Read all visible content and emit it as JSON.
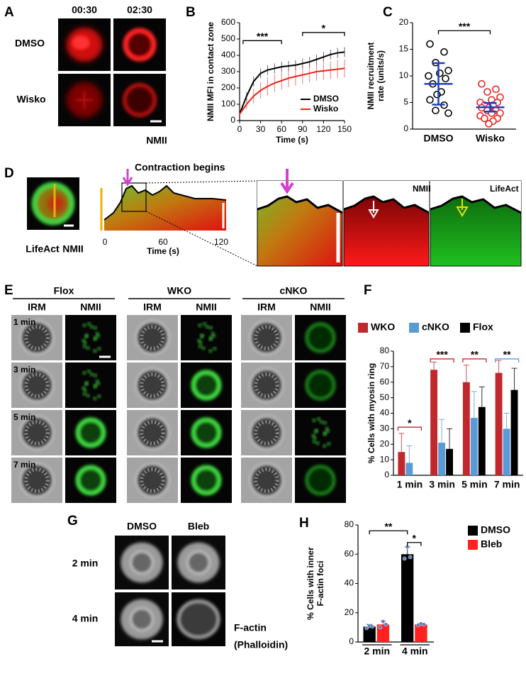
{
  "panel_labels": [
    "A",
    "B",
    "C",
    "D",
    "E",
    "F",
    "G",
    "H"
  ],
  "panel_a": {
    "columns": [
      "00:30",
      "02:30"
    ],
    "rows": [
      "DMSO",
      "Wisko"
    ],
    "channel": "NMII"
  },
  "panel_d": {
    "annotation": "Contraction begins",
    "channels": [
      "LifeAct",
      "NMII"
    ],
    "kymograph_xlabel": "Time (s)",
    "kymograph_xticks": [
      0,
      60,
      120
    ],
    "zoom_labels": [
      "NMII",
      "LifeAct"
    ]
  },
  "panel_e": {
    "groups": [
      "Flox",
      "WKO",
      "cNKO"
    ],
    "channels": [
      "IRM",
      "NMII"
    ],
    "times": [
      "1 min",
      "3 min",
      "5 min",
      "7 min"
    ]
  },
  "panel_g": {
    "columns": [
      "DMSO",
      "Bleb"
    ],
    "rows": [
      "2 min",
      "4 min"
    ],
    "stain": [
      "F-actin",
      "(Phalloidin)"
    ]
  },
  "chart_data": [
    {
      "type": "line",
      "ylabel": [
        "NMII MFI in contact zone"
      ],
      "xlabel": "Time (s)",
      "x": [
        0,
        10,
        20,
        30,
        40,
        50,
        60,
        70,
        80,
        90,
        100,
        110,
        120,
        130,
        140,
        150
      ],
      "xlim": [
        0,
        150
      ],
      "xticks": [
        0,
        30,
        60,
        90,
        120,
        150
      ],
      "ylim": [
        0,
        600
      ],
      "yticks": [
        0,
        100,
        200,
        300,
        400,
        500,
        600
      ],
      "series": [
        {
          "name": "DMSO",
          "color": "#000000",
          "values": [
            40,
            150,
            240,
            290,
            310,
            320,
            330,
            335,
            340,
            350,
            360,
            375,
            390,
            405,
            415,
            420
          ],
          "errors": [
            5,
            25,
            30,
            30,
            30,
            30,
            30,
            30,
            30,
            30,
            30,
            30,
            30,
            30,
            30,
            30
          ]
        },
        {
          "name": "Wisko",
          "color": "#e8231d",
          "values": [
            40,
            100,
            150,
            185,
            210,
            230,
            245,
            260,
            270,
            280,
            290,
            300,
            305,
            310,
            315,
            320
          ],
          "errors": [
            5,
            30,
            45,
            50,
            55,
            55,
            55,
            55,
            55,
            55,
            55,
            55,
            55,
            55,
            55,
            55
          ]
        }
      ],
      "significance": [
        {
          "label": "***",
          "x": [
            5,
            60
          ],
          "y": 490
        },
        {
          "label": "*",
          "x": [
            90,
            150
          ],
          "y": 540
        }
      ],
      "legend": "lower right"
    },
    {
      "type": "dot",
      "ylabel": [
        "NMII recruitment",
        "rate (units/s)"
      ],
      "ylim": [
        0,
        20
      ],
      "yticks": [
        0,
        5,
        10,
        15,
        20
      ],
      "summary_color": "#1f3fbf",
      "series": [
        {
          "name": "DMSO",
          "color": "#000000",
          "values": [
            16,
            14.5,
            12.5,
            11,
            10.5,
            10,
            9.5,
            8.5,
            7,
            6.5,
            5.5,
            4.5,
            3.5,
            3
          ],
          "mean": 8.5,
          "error": 3.9
        },
        {
          "name": "Wisko",
          "color": "#e8231d",
          "values": [
            8.5,
            7.5,
            7,
            6,
            5.5,
            5,
            5,
            4.5,
            4.5,
            4,
            4,
            3.5,
            3.5,
            3,
            3,
            2.5,
            2,
            2,
            1.5,
            1
          ],
          "mean": 4.1,
          "error": 0.8
        }
      ],
      "significance": [
        {
          "label": "***",
          "y": 18.5
        }
      ]
    },
    {
      "type": "bar",
      "ylabel": [
        "% Cells with myosin ring"
      ],
      "categories": [
        "1 min",
        "3 min",
        "5 min",
        "7 min"
      ],
      "ylim": [
        0,
        80
      ],
      "yticks": [
        0,
        10,
        20,
        30,
        40,
        50,
        60,
        70,
        80
      ],
      "series": [
        {
          "name": "WKO",
          "color": "#c0282d",
          "values": [
            15,
            68,
            60,
            66
          ],
          "errors": [
            12,
            5,
            11,
            8
          ]
        },
        {
          "name": "cNKO",
          "color": "#5b9bd5",
          "values": [
            8,
            21,
            37,
            30
          ],
          "errors": [
            11,
            15,
            17,
            10
          ]
        },
        {
          "name": "Flox",
          "color": "#000000",
          "values": [
            null,
            17,
            44,
            55
          ],
          "errors": [
            null,
            13,
            13,
            14
          ]
        }
      ],
      "significance": [
        {
          "label": "*",
          "color": "#c0282d",
          "y": 31
        },
        {
          "label": "***",
          "color": "#c0282d",
          "y": 75
        },
        {
          "label": "**",
          "color": "#c0282d",
          "y": 75
        },
        {
          "label": "**",
          "color": "#5b9bd5",
          "y": 75
        }
      ],
      "legend": "top"
    },
    {
      "type": "bar",
      "ylabel": [
        "% Cells with inner",
        "F-actin foci"
      ],
      "categories": [
        "2 min",
        "4 min"
      ],
      "category_brackets": true,
      "ylim": [
        0,
        80
      ],
      "yticks": [
        0,
        20,
        40,
        60,
        80
      ],
      "point_color": "#5a7fb8",
      "series": [
        {
          "name": "DMSO",
          "color": "#000000",
          "values": [
            10.5,
            60
          ],
          "errors": [
            1.5,
            5
          ],
          "points": [
            [
              9.5,
              11,
              10.5
            ],
            [
              57,
              65,
              58
            ]
          ]
        },
        {
          "name": "Bleb",
          "color": "#ff2020",
          "values": [
            12,
            12
          ],
          "errors": [
            2.5,
            1
          ],
          "points": [
            [
              10,
              14,
              12
            ],
            [
              11.5,
              12.5,
              12
            ]
          ]
        }
      ],
      "significance": [
        {
          "label": "**",
          "y": 76
        },
        {
          "label": "*",
          "y": 68
        }
      ],
      "legend": "right"
    }
  ]
}
